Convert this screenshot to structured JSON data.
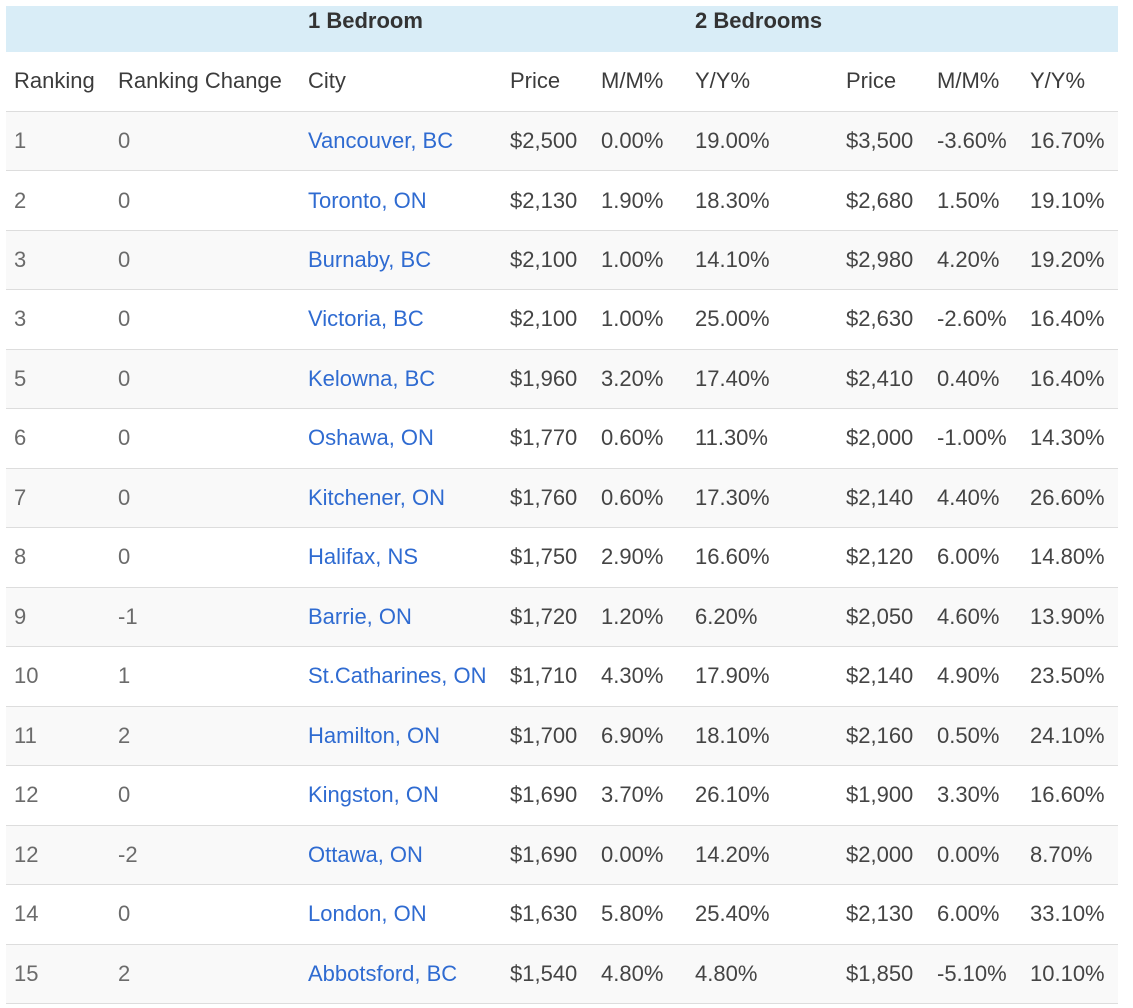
{
  "table": {
    "group_headers": {
      "one_bedroom": "1 Bedroom",
      "two_bedrooms": "2 Bedrooms"
    },
    "columns": {
      "ranking": "Ranking",
      "ranking_change": "Ranking Change",
      "city": "City",
      "one_bedroom": {
        "price": "Price",
        "mm": "M/M%",
        "yy": "Y/Y%"
      },
      "two_bedrooms": {
        "price": "Price",
        "mm": "M/M%",
        "yy": "Y/Y%"
      }
    },
    "rows": [
      {
        "ranking": "1",
        "ranking_change": "0",
        "city": "Vancouver, BC",
        "one_bedroom": {
          "price": "$2,500",
          "mm": "0.00%",
          "yy": "19.00%"
        },
        "two_bedrooms": {
          "price": "$3,500",
          "mm": "-3.60%",
          "yy": "16.70%"
        }
      },
      {
        "ranking": "2",
        "ranking_change": "0",
        "city": "Toronto, ON",
        "one_bedroom": {
          "price": "$2,130",
          "mm": "1.90%",
          "yy": "18.30%"
        },
        "two_bedrooms": {
          "price": "$2,680",
          "mm": "1.50%",
          "yy": "19.10%"
        }
      },
      {
        "ranking": "3",
        "ranking_change": "0",
        "city": "Burnaby, BC",
        "one_bedroom": {
          "price": "$2,100",
          "mm": "1.00%",
          "yy": "14.10%"
        },
        "two_bedrooms": {
          "price": "$2,980",
          "mm": "4.20%",
          "yy": "19.20%"
        }
      },
      {
        "ranking": "3",
        "ranking_change": "0",
        "city": "Victoria, BC",
        "one_bedroom": {
          "price": "$2,100",
          "mm": "1.00%",
          "yy": "25.00%"
        },
        "two_bedrooms": {
          "price": "$2,630",
          "mm": "-2.60%",
          "yy": "16.40%"
        }
      },
      {
        "ranking": "5",
        "ranking_change": "0",
        "city": "Kelowna, BC",
        "one_bedroom": {
          "price": "$1,960",
          "mm": "3.20%",
          "yy": "17.40%"
        },
        "two_bedrooms": {
          "price": "$2,410",
          "mm": "0.40%",
          "yy": "16.40%"
        }
      },
      {
        "ranking": "6",
        "ranking_change": "0",
        "city": "Oshawa, ON",
        "one_bedroom": {
          "price": "$1,770",
          "mm": "0.60%",
          "yy": "11.30%"
        },
        "two_bedrooms": {
          "price": "$2,000",
          "mm": "-1.00%",
          "yy": "14.30%"
        }
      },
      {
        "ranking": "7",
        "ranking_change": "0",
        "city": "Kitchener, ON",
        "one_bedroom": {
          "price": "$1,760",
          "mm": "0.60%",
          "yy": "17.30%"
        },
        "two_bedrooms": {
          "price": "$2,140",
          "mm": "4.40%",
          "yy": "26.60%"
        }
      },
      {
        "ranking": "8",
        "ranking_change": "0",
        "city": "Halifax, NS",
        "one_bedroom": {
          "price": "$1,750",
          "mm": "2.90%",
          "yy": "16.60%"
        },
        "two_bedrooms": {
          "price": "$2,120",
          "mm": "6.00%",
          "yy": "14.80%"
        }
      },
      {
        "ranking": "9",
        "ranking_change": "-1",
        "city": "Barrie, ON",
        "one_bedroom": {
          "price": "$1,720",
          "mm": "1.20%",
          "yy": "6.20%"
        },
        "two_bedrooms": {
          "price": "$2,050",
          "mm": "4.60%",
          "yy": "13.90%"
        }
      },
      {
        "ranking": "10",
        "ranking_change": "1",
        "city": "St.Catharines, ON",
        "one_bedroom": {
          "price": "$1,710",
          "mm": "4.30%",
          "yy": "17.90%"
        },
        "two_bedrooms": {
          "price": "$2,140",
          "mm": "4.90%",
          "yy": "23.50%"
        }
      },
      {
        "ranking": "11",
        "ranking_change": "2",
        "city": "Hamilton, ON",
        "one_bedroom": {
          "price": "$1,700",
          "mm": "6.90%",
          "yy": "18.10%"
        },
        "two_bedrooms": {
          "price": "$2,160",
          "mm": "0.50%",
          "yy": "24.10%"
        }
      },
      {
        "ranking": "12",
        "ranking_change": "0",
        "city": "Kingston, ON",
        "one_bedroom": {
          "price": "$1,690",
          "mm": "3.70%",
          "yy": "26.10%"
        },
        "two_bedrooms": {
          "price": "$1,900",
          "mm": "3.30%",
          "yy": "16.60%"
        }
      },
      {
        "ranking": "12",
        "ranking_change": "-2",
        "city": "Ottawa, ON",
        "one_bedroom": {
          "price": "$1,690",
          "mm": "0.00%",
          "yy": "14.20%"
        },
        "two_bedrooms": {
          "price": "$2,000",
          "mm": "0.00%",
          "yy": "8.70%"
        }
      },
      {
        "ranking": "14",
        "ranking_change": "0",
        "city": "London, ON",
        "one_bedroom": {
          "price": "$1,630",
          "mm": "5.80%",
          "yy": "25.40%"
        },
        "two_bedrooms": {
          "price": "$2,130",
          "mm": "6.00%",
          "yy": "33.10%"
        }
      },
      {
        "ranking": "15",
        "ranking_change": "2",
        "city": "Abbotsford, BC",
        "one_bedroom": {
          "price": "$1,540",
          "mm": "4.80%",
          "yy": "4.80%"
        },
        "two_bedrooms": {
          "price": "$1,850",
          "mm": "-5.10%",
          "yy": "10.10%"
        }
      }
    ]
  },
  "colors": {
    "group_band": "#d9edf7",
    "link": "#2f6bd1",
    "stripe": "#f9f9f9",
    "border": "#dddddd"
  }
}
